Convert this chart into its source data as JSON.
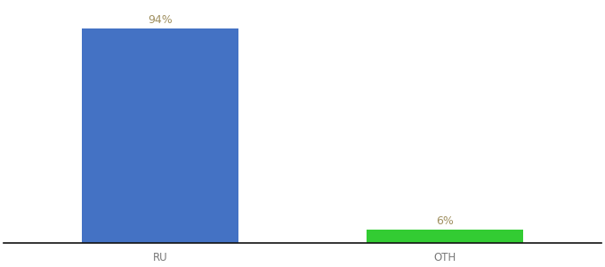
{
  "categories": [
    "RU",
    "OTH"
  ],
  "values": [
    94,
    6
  ],
  "bar_colors": [
    "#4472c4",
    "#33cc33"
  ],
  "label_color": "#a09060",
  "tick_color": "#777777",
  "background_color": "#ffffff",
  "ylim": [
    0,
    105
  ],
  "percentage_labels": [
    "94%",
    "6%"
  ],
  "label_fontsize": 9,
  "tick_fontsize": 8.5,
  "bar_width": 0.55
}
